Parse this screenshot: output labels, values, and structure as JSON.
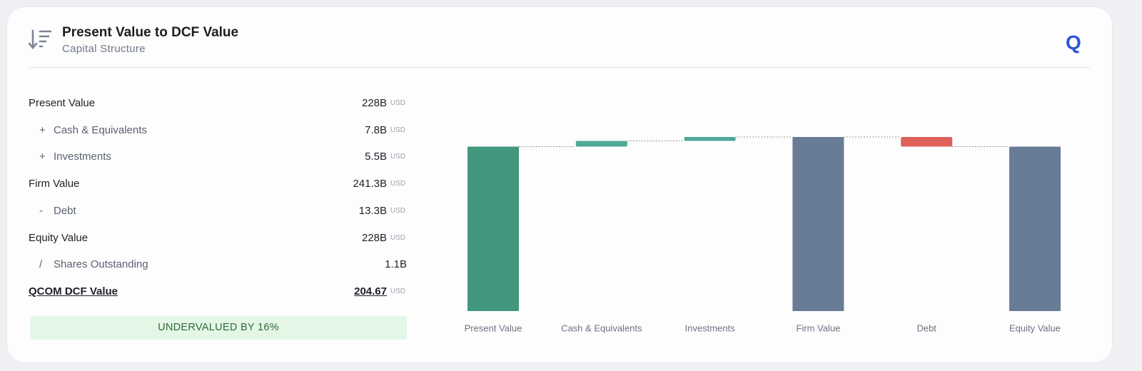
{
  "header": {
    "title": "Present Value to DCF Value",
    "subtitle": "Capital Structure",
    "logo": "Q"
  },
  "table": {
    "rows": [
      {
        "label": "Present Value",
        "value": "228B",
        "unit": "USD"
      },
      {
        "operator": "+",
        "label": "Cash & Equivalents",
        "value": "7.8B",
        "unit": "USD"
      },
      {
        "operator": "+",
        "label": "Investments",
        "value": "5.5B",
        "unit": "USD"
      },
      {
        "label": "Firm Value",
        "value": "241.3B",
        "unit": "USD"
      },
      {
        "operator": "-",
        "label": "Debt",
        "value": "13.3B",
        "unit": "USD"
      },
      {
        "label": "Equity Value",
        "value": "228B",
        "unit": "USD"
      },
      {
        "operator": "/",
        "label": "Shares Outstanding",
        "value": "1.1B"
      },
      {
        "label": "QCOM DCF Value",
        "value": "204.67",
        "unit": "USD",
        "emphasis": true
      }
    ]
  },
  "verdict": "UNDERVALUED BY 16%",
  "chart_data": {
    "type": "waterfall",
    "categories": [
      "Present Value",
      "Cash & Equivalents",
      "Investments",
      "Firm Value",
      "Debt",
      "Equity Value"
    ],
    "values": [
      228,
      7.8,
      5.5,
      241.3,
      -13.3,
      228
    ],
    "measure": [
      "absolute",
      "relative",
      "relative",
      "absolute",
      "relative",
      "absolute"
    ],
    "colors": [
      "#43977f",
      "#4fa89a",
      "#4fa89a",
      "#687c96",
      "#e0605a",
      "#687c96"
    ]
  }
}
